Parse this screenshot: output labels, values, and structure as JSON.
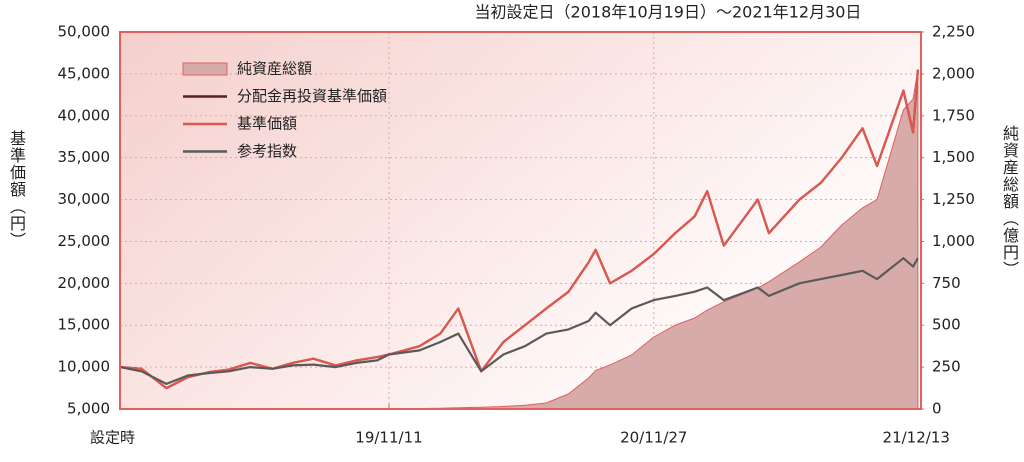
{
  "chart_data": {
    "type": "line",
    "title": "当初設定日（2018年10月19日）～2021年12月30日",
    "y_label": "基準価額（円）",
    "y2_label": "純資産総額（億円）",
    "x": [
      "18/10/19",
      "18/11/19",
      "18/12/25",
      "19/01/25",
      "19/02/25",
      "19/03/25",
      "19/04/25",
      "19/05/27",
      "19/06/25",
      "19/07/25",
      "19/08/26",
      "19/09/25",
      "19/10/25",
      "19/11/11",
      "19/12/25",
      "20/01/24",
      "20/02/19",
      "20/03/23",
      "20/04/24",
      "20/05/25",
      "20/06/25",
      "20/07/27",
      "20/08/25",
      "20/09/04",
      "20/09/25",
      "20/10/26",
      "20/11/27",
      "20/12/28",
      "21/01/25",
      "21/02/12",
      "21/03/08",
      "21/04/26",
      "21/05/12",
      "21/06/25",
      "21/07/26",
      "21/08/25",
      "21/09/24",
      "21/10/15",
      "21/11/22",
      "21/12/06",
      "21/12/13"
    ],
    "xlim": [
      "18/10/19",
      "21/12/16"
    ],
    "xticks": [
      {
        "value": "18/10/19",
        "label": "設定時"
      },
      "19/11/11",
      "20/11/27",
      "21/12/13"
    ],
    "ylim": [
      5000,
      50000
    ],
    "yticks": [
      {
        "value": 5000,
        "label": "5,000"
      },
      {
        "value": 10000,
        "label": "10,000"
      },
      {
        "value": 15000,
        "label": "15,000"
      },
      {
        "value": 20000,
        "label": "20,000"
      },
      {
        "value": 25000,
        "label": "25,000"
      },
      {
        "value": 30000,
        "label": "30,000"
      },
      {
        "value": 35000,
        "label": "35,000"
      },
      {
        "value": 40000,
        "label": "40,000"
      },
      {
        "value": 45000,
        "label": "45,000"
      },
      {
        "value": 50000,
        "label": "50,000"
      }
    ],
    "y2lim": [
      0,
      2250
    ],
    "y2ticks": [
      0,
      250,
      500,
      750,
      {
        "value": 1000,
        "label": "1,000"
      },
      {
        "value": 1250,
        "label": "1,250"
      },
      {
        "value": 1500,
        "label": "1,500"
      },
      {
        "value": 1750,
        "label": "1,750"
      },
      {
        "value": 2000,
        "label": "2,000"
      },
      {
        "value": 2250,
        "label": "2,250"
      }
    ],
    "grid": true,
    "legend": "upper left",
    "series": [
      {
        "name": "純資産総額",
        "type": "area",
        "axis": "y2",
        "color": "#d8abab",
        "values": [
          0,
          0,
          0,
          0,
          0,
          0,
          0,
          0,
          0,
          0,
          0,
          0,
          0,
          0,
          3,
          5,
          8,
          10,
          15,
          22,
          36,
          90,
          185,
          230,
          263,
          322,
          430,
          501,
          543,
          590,
          640,
          722,
          760,
          878,
          967,
          1098,
          1200,
          1250,
          1785,
          1850,
          2024
        ]
      },
      {
        "name": "分配金再投資基準価額",
        "color": "#5a1f1f",
        "values": [
          10000,
          9800,
          7500,
          8800,
          9400,
          9700,
          10500,
          9800,
          10500,
          11000,
          10200,
          10800,
          11200,
          11500,
          12500,
          14000,
          17000,
          9500,
          13000,
          15000,
          17000,
          19000,
          22500,
          24000,
          20000,
          21500,
          23500,
          26000,
          28000,
          31000,
          24500,
          30000,
          26000,
          30000,
          32000,
          35000,
          38500,
          34000,
          43000,
          38000,
          45500
        ]
      },
      {
        "name": "基準価額",
        "color": "#e0574f",
        "values": [
          10000,
          9800,
          7500,
          8800,
          9400,
          9700,
          10500,
          9800,
          10500,
          11000,
          10200,
          10800,
          11200,
          11500,
          12500,
          14000,
          17000,
          9500,
          13000,
          15000,
          17000,
          19000,
          22500,
          24000,
          20000,
          21500,
          23500,
          26000,
          28000,
          31000,
          24500,
          30000,
          26000,
          30000,
          32000,
          35000,
          38500,
          34000,
          43000,
          38000,
          45500
        ]
      },
      {
        "name": "参考指数",
        "color": "#5a5a5a",
        "values": [
          10000,
          9500,
          8000,
          9000,
          9300,
          9500,
          10000,
          9800,
          10200,
          10300,
          10000,
          10500,
          10800,
          11500,
          12000,
          13000,
          14000,
          9500,
          11500,
          12500,
          14000,
          14500,
          15500,
          16500,
          15000,
          17000,
          18000,
          18500,
          19000,
          19500,
          18000,
          19500,
          18500,
          20000,
          20500,
          21000,
          21500,
          20500,
          23000,
          22000,
          23000
        ]
      }
    ]
  }
}
